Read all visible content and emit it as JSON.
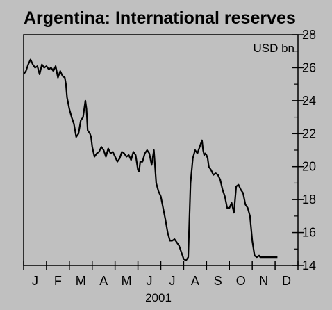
{
  "chart_data": {
    "type": "line",
    "title": "Argentina: International reserves",
    "unit_label": "USD bn",
    "xlabel": "2001",
    "ylabel": "",
    "ylim": [
      14,
      28
    ],
    "y_ticks": [
      14,
      16,
      18,
      20,
      22,
      24,
      26,
      28
    ],
    "month_labels": [
      "J",
      "F",
      "M",
      "A",
      "M",
      "J",
      "J",
      "A",
      "S",
      "O",
      "N",
      "D"
    ],
    "xlim_months": [
      0,
      12
    ],
    "grid": false,
    "line_color": "#000000",
    "background": "#c0c0c0",
    "series": [
      {
        "x_month": [
          0.0,
          0.1,
          0.2,
          0.3,
          0.4,
          0.5,
          0.6,
          0.7,
          0.8,
          0.9,
          1.0,
          1.1,
          1.2,
          1.3,
          1.4,
          1.5,
          1.6,
          1.7,
          1.8,
          1.85,
          1.9,
          2.0,
          2.1,
          2.2,
          2.3,
          2.4,
          2.5,
          2.6,
          2.7,
          2.75,
          2.8,
          2.9,
          2.95,
          3.0,
          3.05,
          3.1,
          3.2,
          3.3,
          3.4,
          3.5,
          3.6,
          3.7,
          3.8,
          3.9,
          4.0,
          4.1,
          4.2,
          4.3,
          4.4,
          4.5,
          4.6,
          4.7,
          4.8,
          4.9,
          5.0,
          5.05,
          5.1,
          5.2,
          5.3,
          5.4,
          5.5,
          5.6,
          5.7,
          5.8,
          5.9,
          6.0,
          6.1,
          6.2,
          6.3,
          6.4,
          6.5,
          6.6,
          6.7,
          6.8,
          6.9,
          7.0,
          7.1,
          7.2,
          7.3,
          7.4,
          7.5,
          7.6,
          7.7,
          7.8,
          7.85,
          7.9,
          7.95,
          8.0,
          8.05,
          8.1,
          8.2,
          8.3,
          8.4,
          8.5,
          8.6,
          8.7,
          8.8,
          8.9,
          9.0,
          9.1,
          9.2,
          9.3,
          9.4,
          9.5,
          9.6,
          9.7,
          9.8,
          9.9,
          10.0,
          10.1,
          10.2,
          10.3,
          10.35,
          10.4,
          10.5,
          10.6,
          10.7,
          10.8,
          10.9,
          11.0,
          11.05,
          11.1
        ],
        "values": [
          25.6,
          25.8,
          26.2,
          26.5,
          26.2,
          26.0,
          26.1,
          25.6,
          26.2,
          26.0,
          26.1,
          25.9,
          26.0,
          25.8,
          26.1,
          25.4,
          25.8,
          25.5,
          25.4,
          25.0,
          24.2,
          23.5,
          23.0,
          22.6,
          21.8,
          22.0,
          22.8,
          23.0,
          24.0,
          23.5,
          22.2,
          22.0,
          21.8,
          21.2,
          20.9,
          20.6,
          20.8,
          20.9,
          21.2,
          21.0,
          20.6,
          21.1,
          20.8,
          20.9,
          20.6,
          20.3,
          20.5,
          20.9,
          20.8,
          20.6,
          20.7,
          20.4,
          20.9,
          20.7,
          19.8,
          19.7,
          20.3,
          20.3,
          20.8,
          21.0,
          20.8,
          20.1,
          21.0,
          19.0,
          18.5,
          18.2,
          17.5,
          16.8,
          16.0,
          15.5,
          15.5,
          15.6,
          15.4,
          15.2,
          14.8,
          14.4,
          14.3,
          14.5,
          19.0,
          20.5,
          21.0,
          20.8,
          21.2,
          21.6,
          21.0,
          20.7,
          20.8,
          20.7,
          20.5,
          20.0,
          19.8,
          19.5,
          19.6,
          19.5,
          19.2,
          18.6,
          18.2,
          17.5,
          17.5,
          17.8,
          17.2,
          18.8,
          18.9,
          18.6,
          18.4,
          17.7,
          17.5,
          17.0,
          15.5,
          14.6,
          14.5,
          14.6,
          14.5,
          14.5,
          14.5,
          14.5,
          14.5,
          14.5,
          14.5,
          14.5,
          14.5,
          14.5
        ]
      }
    ]
  }
}
